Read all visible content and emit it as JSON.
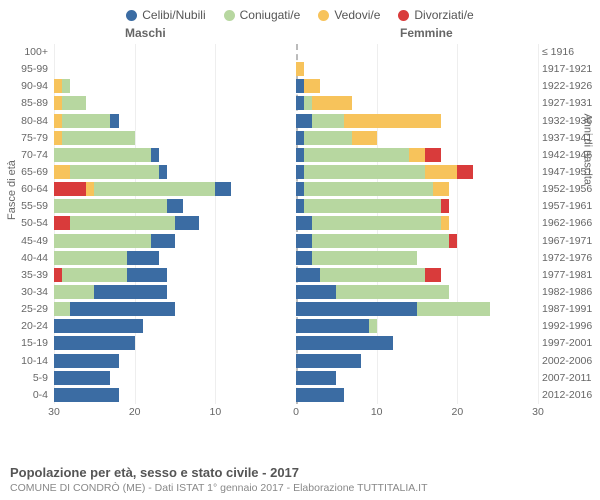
{
  "legend": [
    {
      "label": "Celibi/Nubili",
      "color": "#3b6ca3"
    },
    {
      "label": "Coniugati/e",
      "color": "#b7d7a0"
    },
    {
      "label": "Vedovi/e",
      "color": "#f7c35b"
    },
    {
      "label": "Divorziati/e",
      "color": "#d93b3b"
    }
  ],
  "header_male": "Maschi",
  "header_female": "Femmine",
  "yaxis_left": "Fasce di età",
  "yaxis_right": "Anni di nascita",
  "x_ticks": [
    30,
    20,
    10,
    0,
    10,
    20,
    30
  ],
  "x_max": 30,
  "colors": {
    "single": "#3b6ca3",
    "married": "#b7d7a0",
    "widowed": "#f7c35b",
    "divorced": "#d93b3b",
    "grid": "#eeeeee",
    "center": "#bbbbbb",
    "text": "#666666",
    "bg": "#ffffff"
  },
  "font": {
    "tick": 10.5,
    "legend": 12,
    "title": 13,
    "axis": 11
  },
  "rows": [
    {
      "age": "100+",
      "birth": "≤ 1916",
      "m": {
        "s": 0,
        "m": 0,
        "w": 0,
        "d": 0
      },
      "f": {
        "s": 0,
        "m": 0,
        "w": 0,
        "d": 0
      }
    },
    {
      "age": "95-99",
      "birth": "1917-1921",
      "m": {
        "s": 0,
        "m": 0,
        "w": 0,
        "d": 0
      },
      "f": {
        "s": 0,
        "m": 0,
        "w": 1,
        "d": 0
      }
    },
    {
      "age": "90-94",
      "birth": "1922-1926",
      "m": {
        "s": 0,
        "m": 1,
        "w": 1,
        "d": 0
      },
      "f": {
        "s": 1,
        "m": 0,
        "w": 2,
        "d": 0
      }
    },
    {
      "age": "85-89",
      "birth": "1927-1931",
      "m": {
        "s": 0,
        "m": 3,
        "w": 1,
        "d": 0
      },
      "f": {
        "s": 1,
        "m": 1,
        "w": 5,
        "d": 0
      }
    },
    {
      "age": "80-84",
      "birth": "1932-1936",
      "m": {
        "s": 1,
        "m": 6,
        "w": 1,
        "d": 0
      },
      "f": {
        "s": 2,
        "m": 4,
        "w": 12,
        "d": 0
      }
    },
    {
      "age": "75-79",
      "birth": "1937-1941",
      "m": {
        "s": 0,
        "m": 9,
        "w": 1,
        "d": 0
      },
      "f": {
        "s": 1,
        "m": 6,
        "w": 3,
        "d": 0
      }
    },
    {
      "age": "70-74",
      "birth": "1942-1946",
      "m": {
        "s": 1,
        "m": 12,
        "w": 0,
        "d": 0
      },
      "f": {
        "s": 1,
        "m": 13,
        "w": 2,
        "d": 2
      }
    },
    {
      "age": "65-69",
      "birth": "1947-1951",
      "m": {
        "s": 1,
        "m": 11,
        "w": 2,
        "d": 0
      },
      "f": {
        "s": 1,
        "m": 15,
        "w": 4,
        "d": 2
      }
    },
    {
      "age": "60-64",
      "birth": "1952-1956",
      "m": {
        "s": 2,
        "m": 15,
        "w": 1,
        "d": 4
      },
      "f": {
        "s": 1,
        "m": 16,
        "w": 2,
        "d": 0
      }
    },
    {
      "age": "55-59",
      "birth": "1957-1961",
      "m": {
        "s": 2,
        "m": 14,
        "w": 0,
        "d": 0
      },
      "f": {
        "s": 1,
        "m": 17,
        "w": 0,
        "d": 1
      }
    },
    {
      "age": "50-54",
      "birth": "1962-1966",
      "m": {
        "s": 3,
        "m": 13,
        "w": 0,
        "d": 2
      },
      "f": {
        "s": 2,
        "m": 16,
        "w": 1,
        "d": 0
      }
    },
    {
      "age": "45-49",
      "birth": "1967-1971",
      "m": {
        "s": 3,
        "m": 12,
        "w": 0,
        "d": 0
      },
      "f": {
        "s": 2,
        "m": 17,
        "w": 0,
        "d": 1
      }
    },
    {
      "age": "40-44",
      "birth": "1972-1976",
      "m": {
        "s": 4,
        "m": 9,
        "w": 0,
        "d": 0
      },
      "f": {
        "s": 2,
        "m": 13,
        "w": 0,
        "d": 0
      }
    },
    {
      "age": "35-39",
      "birth": "1977-1981",
      "m": {
        "s": 5,
        "m": 8,
        "w": 0,
        "d": 1
      },
      "f": {
        "s": 3,
        "m": 13,
        "w": 0,
        "d": 2
      }
    },
    {
      "age": "30-34",
      "birth": "1982-1986",
      "m": {
        "s": 9,
        "m": 5,
        "w": 0,
        "d": 0
      },
      "f": {
        "s": 5,
        "m": 14,
        "w": 0,
        "d": 0
      }
    },
    {
      "age": "25-29",
      "birth": "1987-1991",
      "m": {
        "s": 13,
        "m": 2,
        "w": 0,
        "d": 0
      },
      "f": {
        "s": 15,
        "m": 9,
        "w": 0,
        "d": 0
      }
    },
    {
      "age": "20-24",
      "birth": "1992-1996",
      "m": {
        "s": 11,
        "m": 0,
        "w": 0,
        "d": 0
      },
      "f": {
        "s": 9,
        "m": 1,
        "w": 0,
        "d": 0
      }
    },
    {
      "age": "15-19",
      "birth": "1997-2001",
      "m": {
        "s": 10,
        "m": 0,
        "w": 0,
        "d": 0
      },
      "f": {
        "s": 12,
        "m": 0,
        "w": 0,
        "d": 0
      }
    },
    {
      "age": "10-14",
      "birth": "2002-2006",
      "m": {
        "s": 8,
        "m": 0,
        "w": 0,
        "d": 0
      },
      "f": {
        "s": 8,
        "m": 0,
        "w": 0,
        "d": 0
      }
    },
    {
      "age": "5-9",
      "birth": "2007-2011",
      "m": {
        "s": 7,
        "m": 0,
        "w": 0,
        "d": 0
      },
      "f": {
        "s": 5,
        "m": 0,
        "w": 0,
        "d": 0
      }
    },
    {
      "age": "0-4",
      "birth": "2012-2016",
      "m": {
        "s": 8,
        "m": 0,
        "w": 0,
        "d": 0
      },
      "f": {
        "s": 6,
        "m": 0,
        "w": 0,
        "d": 0
      }
    }
  ],
  "title": "Popolazione per età, sesso e stato civile - 2017",
  "subtitle": "COMUNE DI CONDRÒ (ME) - Dati ISTAT 1° gennaio 2017 - Elaborazione TUTTITALIA.IT"
}
